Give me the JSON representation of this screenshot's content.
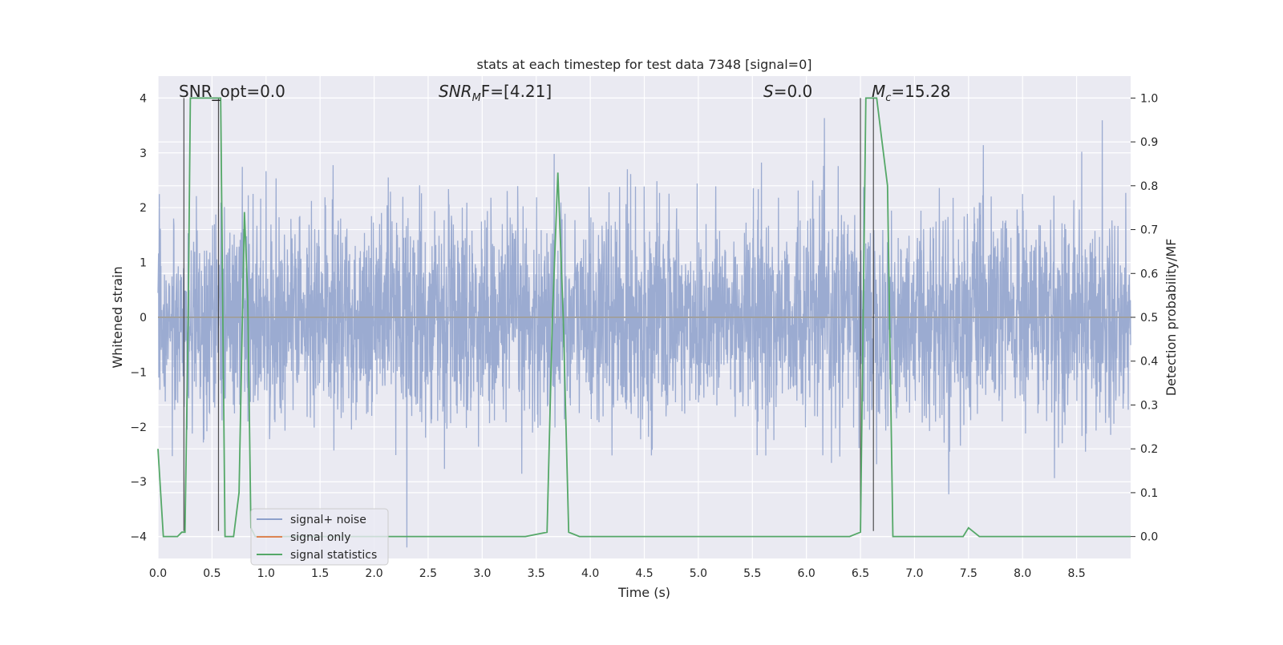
{
  "chart_data": {
    "type": "line",
    "title": "stats at each timestep for test data 7348 [signal=0]",
    "xlabel": "Time (s)",
    "ylabel_left": "Whitened strain",
    "ylabel_right": "Detection probability/MF",
    "xlim": [
      0.0,
      9.0
    ],
    "ylim_left": [
      -4.4,
      4.4
    ],
    "ylim_right": [
      -0.05,
      1.05
    ],
    "x_ticks": [
      "0.0",
      "0.5",
      "1.0",
      "1.5",
      "2.0",
      "2.5",
      "3.0",
      "3.5",
      "4.0",
      "4.5",
      "5.0",
      "5.5",
      "6.0",
      "6.5",
      "7.0",
      "7.5",
      "8.0",
      "8.5"
    ],
    "y_ticks_left": [
      "4",
      "3",
      "2",
      "1",
      "0",
      "−1",
      "−2",
      "−3",
      "−4"
    ],
    "y_ticks_right": [
      "1.0",
      "0.9",
      "0.8",
      "0.7",
      "0.6",
      "0.5",
      "0.4",
      "0.3",
      "0.2",
      "0.1",
      "0.0"
    ],
    "grid": true,
    "legend_position": "lower-left",
    "annotations": {
      "snr_opt": "SNR_opt=0.0",
      "snr_mf_prefix": "SNR",
      "snr_mf_sub": "M",
      "snr_mf_suffix": "F=[4.21]",
      "s_label": "S",
      "s_value": "=0.0",
      "mc_label": "M",
      "mc_sub": "c",
      "mc_value": "=15.28"
    },
    "series": [
      {
        "name": "signal+ noise",
        "color": "#8da0cb",
        "axis": "left",
        "description_values": "whitened noise, approx ±1.6 typical, peaks to ±4"
      },
      {
        "name": "signal only",
        "color": "#dd8452",
        "axis": "left",
        "values_constant": 0.0
      },
      {
        "name": "signal statistics",
        "color": "#55a868",
        "axis": "right",
        "x": [
          0.0,
          0.05,
          0.1,
          0.15,
          0.18,
          0.22,
          0.25,
          0.28,
          0.3,
          0.35,
          0.4,
          0.45,
          0.5,
          0.55,
          0.58,
          0.62,
          0.66,
          0.7,
          0.75,
          0.8,
          0.83,
          0.86,
          0.9,
          0.95,
          1.0,
          1.5,
          2.0,
          2.5,
          3.0,
          3.4,
          3.6,
          3.65,
          3.7,
          3.75,
          3.8,
          3.9,
          4.0,
          5.0,
          6.0,
          6.4,
          6.5,
          6.55,
          6.6,
          6.65,
          6.7,
          6.75,
          6.8,
          7.0,
          7.4,
          7.45,
          7.5,
          7.55,
          7.6,
          7.7,
          8.0,
          8.5,
          8.7,
          9.0
        ],
        "y": [
          0.2,
          0.0,
          0.0,
          0.0,
          0.0,
          0.01,
          0.01,
          0.5,
          1.0,
          1.0,
          1.0,
          1.0,
          1.0,
          1.0,
          1.0,
          0.0,
          0.0,
          0.0,
          0.1,
          0.74,
          0.55,
          0.02,
          0.0,
          0.0,
          0.0,
          0.0,
          0.0,
          0.0,
          0.0,
          0.0,
          0.01,
          0.5,
          0.83,
          0.5,
          0.01,
          0.0,
          0.0,
          0.0,
          0.0,
          0.0,
          0.01,
          1.0,
          1.0,
          1.0,
          0.9,
          0.8,
          0.0,
          0.0,
          0.0,
          0.0,
          0.02,
          0.01,
          0.0,
          0.0,
          0.0,
          0.0,
          0.0,
          0.0
        ]
      }
    ],
    "vertical_lines": [
      {
        "x": 0.24,
        "y_from": -3.9,
        "y_to": 4.0
      },
      {
        "x": 0.56,
        "y_from": -3.9,
        "y_to": 4.0
      },
      {
        "x": 6.5,
        "y_from": -3.9,
        "y_to": 4.0
      },
      {
        "x": 6.62,
        "y_from": -3.9,
        "y_to": 4.0
      }
    ],
    "legend": [
      "signal+ noise",
      "signal only",
      "signal statistics"
    ]
  }
}
